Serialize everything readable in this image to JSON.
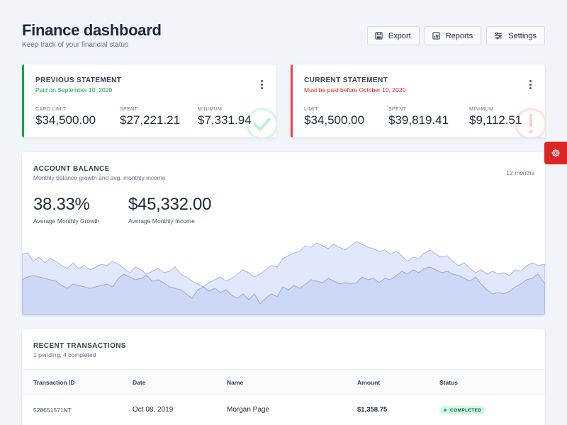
{
  "header": {
    "title": "Finance dashboard",
    "subtitle": "Keep track of your financial status"
  },
  "actions": {
    "export_label": "Export",
    "reports_label": "Reports",
    "settings_label": "Settings"
  },
  "previous_statement": {
    "label": "PREVIOUS STATEMENT",
    "status": "Paid on September 10, 2020",
    "status_color": "#16a34a",
    "accent": "#16a34a",
    "metrics": [
      {
        "label": "CARD LIMIT",
        "value": "$34,500.00"
      },
      {
        "label": "SPENT",
        "value": "$27,221.21"
      },
      {
        "label": "MINIMUM",
        "value": "$7,331.94"
      }
    ]
  },
  "current_statement": {
    "label": "CURRENT STATEMENT",
    "status": "Must be paid before October 10, 2020",
    "status_color": "#dc2626",
    "accent": "#ef4444",
    "metrics": [
      {
        "label": "LIMIT",
        "value": "$34,500.00"
      },
      {
        "label": "SPENT",
        "value": "$39,819.41"
      },
      {
        "label": "MINIMUM",
        "value": "$9,112.51"
      }
    ]
  },
  "account_balance": {
    "title": "ACCOUNT BALANCE",
    "subtitle": "Monthly balance growth and avg. monthly income",
    "range": "12 months",
    "growth_value": "38.33%",
    "growth_label": "Average Monthly Growth",
    "income_value": "$45,332.00",
    "income_label": "Average Monthly Income"
  },
  "transactions": {
    "title": "RECENT TRANSACTIONS",
    "subtitle": "1 pending, 4 completed",
    "columns": [
      "Transaction ID",
      "Date",
      "Name",
      "Amount",
      "Status"
    ],
    "rows": [
      {
        "id": "528651571NT",
        "date": "Oct 08, 2019",
        "name": "Morgan Page",
        "amount": "$1,358.75",
        "status": "COMPLETED"
      }
    ]
  },
  "colors": {
    "accent_red": "#dc2626",
    "success_green": "#10b981",
    "chart_fill_light": "#e2e8fb",
    "chart_fill_dark": "#cdd8f6",
    "chart_line": "#94a8dc"
  },
  "icons": {
    "export": "save-icon",
    "reports": "chart-icon",
    "settings": "sliders-icon",
    "paid": "check-circle-icon",
    "due": "alert-circle-icon",
    "theme": "gear-icon"
  }
}
